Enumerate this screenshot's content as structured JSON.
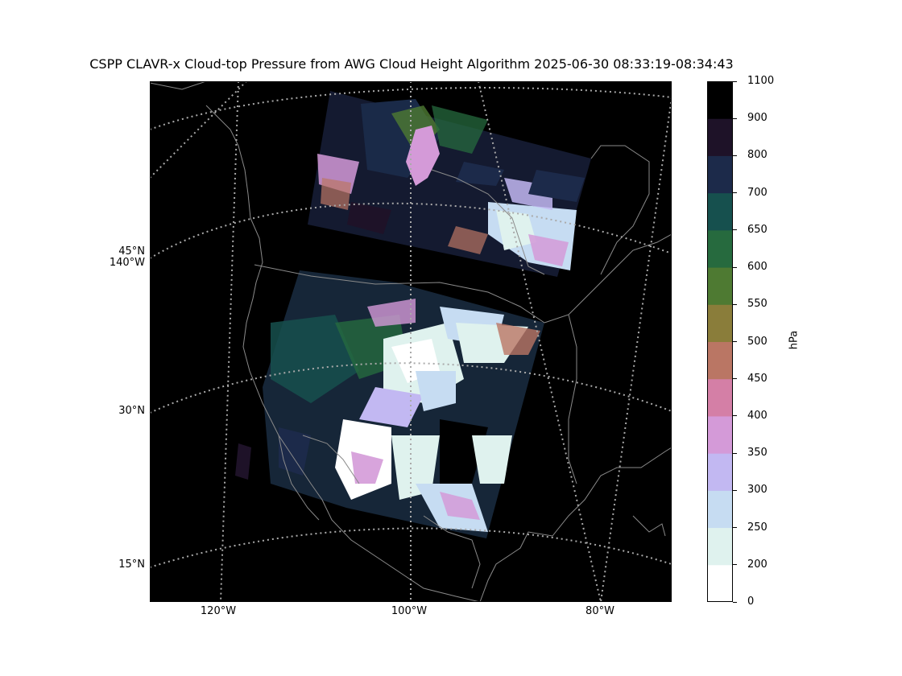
{
  "title": "CSPP CLAVR-x Cloud-top Pressure from AWG Cloud Height Algorithm 2025-06-30 08:33:19-08:34:43",
  "map": {
    "projection": "lambert-conformal",
    "background_color": "#000000",
    "coastline_color": "#888888",
    "gridline_color": "#aaaaaa",
    "gridline_style": "dotted",
    "lat_ticks": [
      "45°N",
      "30°N",
      "15°N"
    ],
    "lat_extra_label": "140°W",
    "lon_ticks": [
      "120°W",
      "100°W",
      "80°W"
    ]
  },
  "colorbar": {
    "label": "hPa",
    "ticks": [
      "0",
      "200",
      "250",
      "300",
      "350",
      "400",
      "450",
      "500",
      "550",
      "600",
      "650",
      "700",
      "800",
      "900",
      "1100"
    ],
    "tick_values": [
      0,
      200,
      250,
      300,
      350,
      400,
      450,
      500,
      550,
      600,
      650,
      700,
      800,
      900,
      1100
    ],
    "colors": [
      "#ffffff",
      "#dff2ee",
      "#c6dcf2",
      "#c2b8f2",
      "#d49ad8",
      "#d47fa6",
      "#ba7664",
      "#8a7d3a",
      "#4e7a32",
      "#266a3e",
      "#16504e",
      "#1c2a4a",
      "#1e1228",
      "#000000"
    ]
  }
}
